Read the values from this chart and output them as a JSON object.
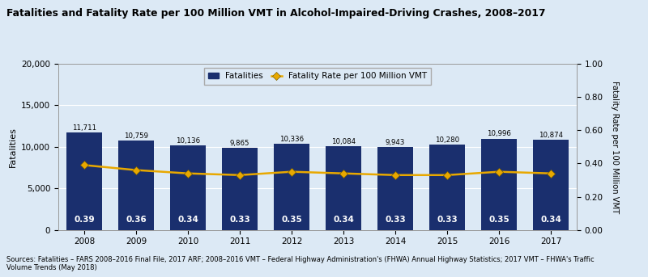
{
  "title": "Fatalities and Fatality Rate per 100 Million VMT in Alcohol-Impaired-Driving Crashes, 2008–2017",
  "years": [
    2008,
    2009,
    2010,
    2011,
    2012,
    2013,
    2014,
    2015,
    2016,
    2017
  ],
  "fatalities": [
    11711,
    10759,
    10136,
    9865,
    10336,
    10084,
    9943,
    10280,
    10996,
    10874
  ],
  "fatality_rate": [
    0.39,
    0.36,
    0.34,
    0.33,
    0.35,
    0.34,
    0.33,
    0.33,
    0.35,
    0.34
  ],
  "bar_color": "#1a2f6e",
  "line_color": "#E8A800",
  "bg_color": "#dce9f5",
  "ylabel_left": "Fatalities",
  "ylabel_right": "Fatality Rate per 100 Million VMT",
  "ylim_left": [
    0,
    20000
  ],
  "ylim_right": [
    0.0,
    1.0
  ],
  "yticks_left": [
    0,
    5000,
    10000,
    15000,
    20000
  ],
  "yticks_right": [
    0.0,
    0.2,
    0.4,
    0.6,
    0.8,
    1.0
  ],
  "legend_fatalities": "Fatalities",
  "legend_rate": "Fatality Rate per 100 Million VMT",
  "source_text": "Sources: Fatalities – FARS 2008–2016 Final File, 2017 ARF; 2008–2016 VMT – Federal Highway Administration's (FHWA) Annual Highway Statistics; 2017 VMT – FHWA's Traffic\nVolume Trends (May 2018)"
}
